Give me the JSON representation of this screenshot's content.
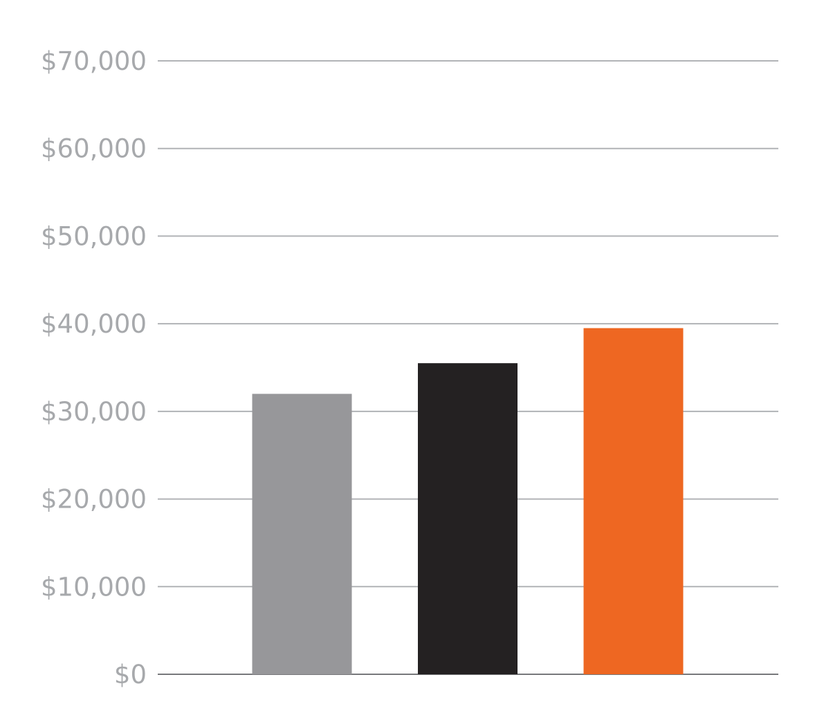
{
  "chart_data": {
    "type": "bar",
    "categories": [
      "",
      "",
      ""
    ],
    "values": [
      32000,
      35500,
      39500
    ],
    "colors": [
      "#97979a",
      "#242122",
      "#ee6722"
    ],
    "title": "",
    "xlabel": "",
    "ylabel": "",
    "ylim": [
      0,
      70000
    ],
    "yticks": [
      0,
      10000,
      20000,
      30000,
      40000,
      50000,
      60000,
      70000
    ],
    "ytick_labels": [
      "$0",
      "$10,000",
      "$20,000",
      "$30,000",
      "$40,000",
      "$50,000",
      "$60,000",
      "$70,000"
    ],
    "grid": true,
    "legend": "none",
    "gridline_color": "#b1b3b6",
    "baseline_color": "#77787b"
  }
}
